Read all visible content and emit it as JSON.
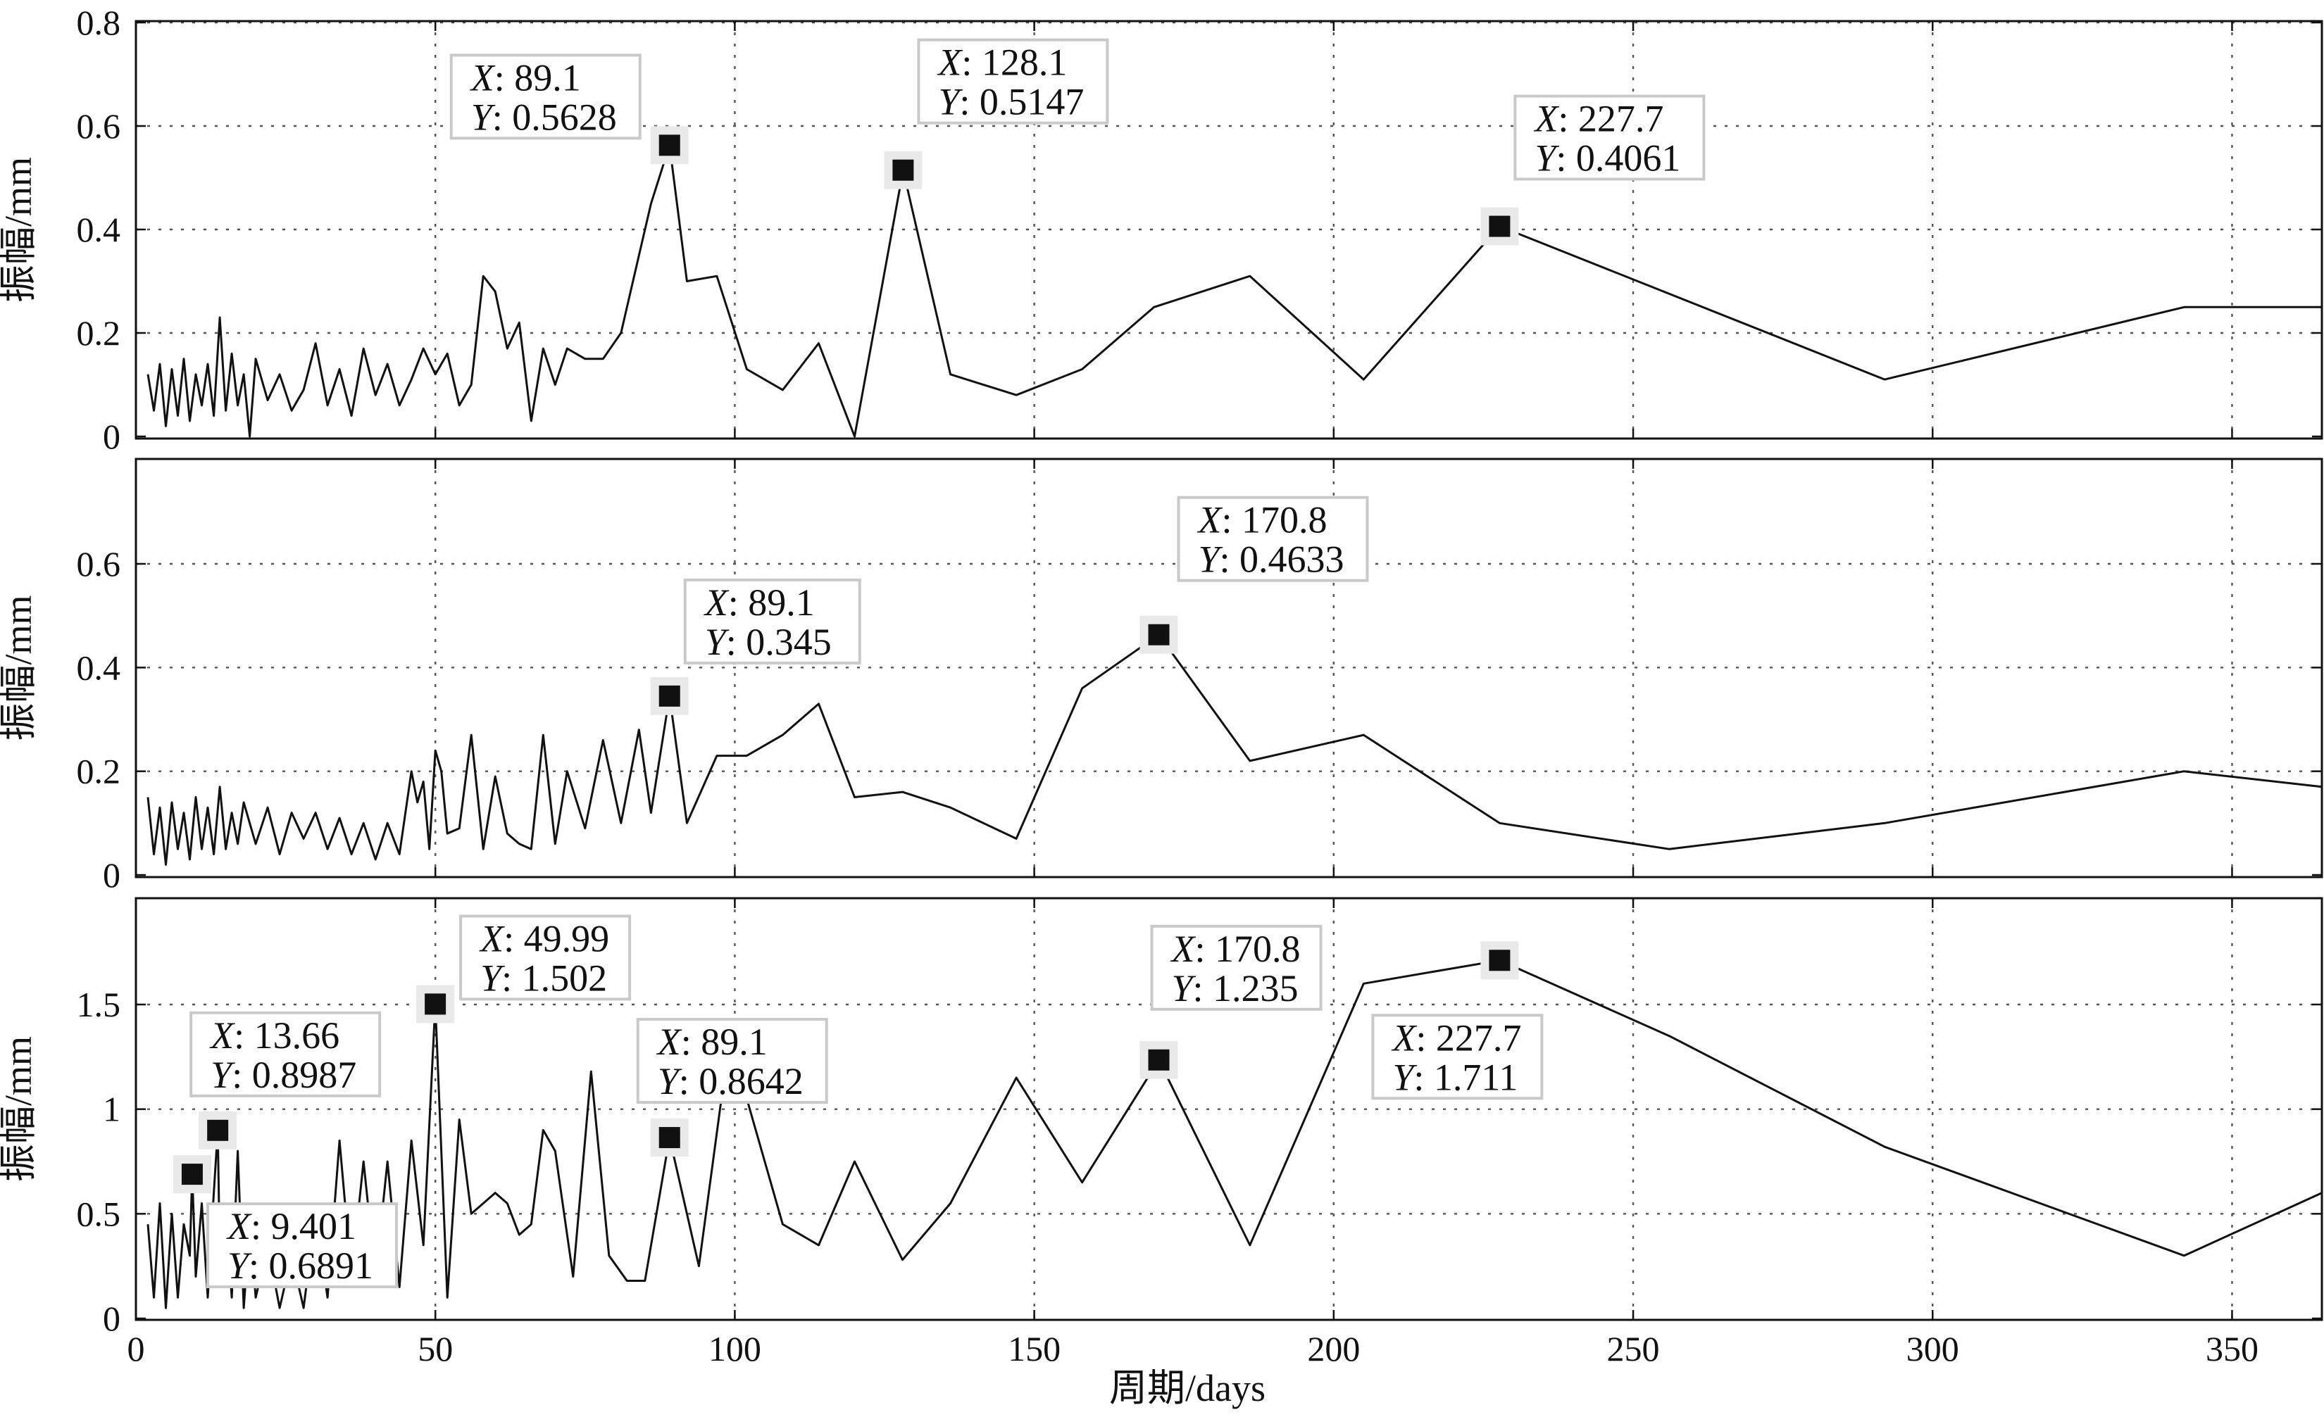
{
  "chart_data": [
    {
      "type": "line",
      "title": "",
      "xlabel": "",
      "ylabel": "振幅/mm",
      "xlim": [
        0,
        365
      ],
      "ylim": [
        0,
        0.8
      ],
      "xticks": [
        0,
        50,
        100,
        150,
        200,
        250,
        300,
        350
      ],
      "xtick_labels": [
        "",
        "",
        "",
        "",
        "",
        "",
        "",
        ""
      ],
      "yticks": [
        0,
        0.2,
        0.4,
        0.6,
        0.8
      ],
      "ytick_labels": [
        "0",
        "0.2",
        "0.4",
        "0.6",
        "0.8"
      ],
      "grid": true,
      "x": [
        2,
        3,
        4,
        5,
        6,
        7,
        8,
        9,
        10,
        11,
        12,
        13,
        14,
        15,
        16,
        17,
        18,
        19,
        20,
        22,
        24,
        26,
        28,
        30,
        32,
        34,
        36,
        38,
        40,
        42,
        44,
        46,
        48,
        50,
        52,
        54,
        56,
        58,
        60,
        62,
        64,
        66,
        68,
        70,
        72,
        75,
        78,
        81,
        84,
        86,
        89.1,
        92,
        97,
        102,
        108,
        114,
        120,
        128.1,
        136,
        147,
        158,
        170,
        186,
        205,
        227.7,
        292,
        342,
        365
      ],
      "y": [
        0.12,
        0.05,
        0.14,
        0.02,
        0.13,
        0.04,
        0.15,
        0.03,
        0.12,
        0.06,
        0.14,
        0.04,
        0.23,
        0.05,
        0.16,
        0.06,
        0.12,
        0.0,
        0.15,
        0.07,
        0.12,
        0.05,
        0.09,
        0.18,
        0.06,
        0.13,
        0.04,
        0.17,
        0.08,
        0.14,
        0.06,
        0.11,
        0.17,
        0.12,
        0.16,
        0.06,
        0.1,
        0.31,
        0.28,
        0.17,
        0.22,
        0.03,
        0.17,
        0.1,
        0.17,
        0.15,
        0.15,
        0.2,
        0.35,
        0.45,
        0.5628,
        0.3,
        0.31,
        0.13,
        0.09,
        0.18,
        0.0,
        0.5147,
        0.12,
        0.08,
        0.13,
        0.25,
        0.31,
        0.11,
        0.4061,
        0.11,
        0.25,
        0.25
      ],
      "datatips": [
        {
          "x": 89.1,
          "y": 0.5628,
          "x_label": "X",
          "x_text": ": 89.1",
          "y_label": "Y",
          "y_text": ": 0.5628"
        },
        {
          "x": 128.1,
          "y": 0.5147,
          "x_label": "X",
          "x_text": ": 128.1",
          "y_label": "Y",
          "y_text": ": 0.5147"
        },
        {
          "x": 227.7,
          "y": 0.4061,
          "x_label": "X",
          "x_text": ": 227.7",
          "y_label": "Y",
          "y_text": ": 0.4061"
        }
      ]
    },
    {
      "type": "line",
      "title": "",
      "xlabel": "",
      "ylabel": "振幅/mm",
      "xlim": [
        0,
        365
      ],
      "ylim": [
        0,
        0.8
      ],
      "xticks": [
        0,
        50,
        100,
        150,
        200,
        250,
        300,
        350
      ],
      "xtick_labels": [
        "",
        "",
        "",
        "",
        "",
        "",
        "",
        ""
      ],
      "yticks": [
        0,
        0.2,
        0.4,
        0.6
      ],
      "ytick_labels": [
        "0",
        "0.2",
        "0.4",
        "0.6"
      ],
      "grid": true,
      "x": [
        2,
        3,
        4,
        5,
        6,
        7,
        8,
        9,
        10,
        11,
        12,
        13,
        14,
        15,
        16,
        17,
        18,
        20,
        22,
        24,
        26,
        28,
        30,
        32,
        34,
        36,
        38,
        40,
        42,
        44,
        46,
        47,
        48,
        49,
        50,
        51,
        52,
        54,
        56,
        58,
        60,
        62,
        64,
        66,
        68,
        70,
        72,
        75,
        78,
        81,
        84,
        86,
        89.1,
        92,
        97,
        102,
        108,
        114,
        120,
        128,
        136,
        147,
        158,
        170.8,
        186,
        205,
        227.7,
        256,
        292,
        342,
        365
      ],
      "y": [
        0.15,
        0.04,
        0.13,
        0.02,
        0.14,
        0.05,
        0.12,
        0.03,
        0.15,
        0.05,
        0.13,
        0.04,
        0.17,
        0.05,
        0.12,
        0.06,
        0.14,
        0.06,
        0.13,
        0.04,
        0.12,
        0.07,
        0.12,
        0.05,
        0.11,
        0.04,
        0.1,
        0.03,
        0.1,
        0.04,
        0.2,
        0.14,
        0.18,
        0.05,
        0.24,
        0.2,
        0.08,
        0.09,
        0.27,
        0.05,
        0.19,
        0.08,
        0.06,
        0.05,
        0.27,
        0.06,
        0.2,
        0.09,
        0.26,
        0.1,
        0.28,
        0.12,
        0.345,
        0.1,
        0.23,
        0.23,
        0.27,
        0.33,
        0.15,
        0.16,
        0.13,
        0.07,
        0.36,
        0.4633,
        0.22,
        0.27,
        0.1,
        0.05,
        0.1,
        0.2,
        0.17
      ],
      "datatips": [
        {
          "x": 89.1,
          "y": 0.345,
          "x_label": "X",
          "x_text": ": 89.1",
          "y_label": "Y",
          "y_text": ": 0.345"
        },
        {
          "x": 170.8,
          "y": 0.4633,
          "x_label": "X",
          "x_text": ": 170.8",
          "y_label": "Y",
          "y_text": ": 0.4633"
        }
      ]
    },
    {
      "type": "line",
      "title": "",
      "xlabel": "周期/days",
      "ylabel": "振幅/mm",
      "xlim": [
        0,
        365
      ],
      "ylim": [
        0,
        2
      ],
      "xticks": [
        0,
        50,
        100,
        150,
        200,
        250,
        300,
        350
      ],
      "xtick_labels": [
        "0",
        "50",
        "100",
        "150",
        "200",
        "250",
        "300",
        "350"
      ],
      "yticks": [
        0,
        0.5,
        1,
        1.5
      ],
      "ytick_labels": [
        "0",
        "0.5",
        "1",
        "1.5"
      ],
      "grid": true,
      "x": [
        2,
        3,
        4,
        5,
        6,
        7,
        8,
        9,
        9.401,
        10,
        11,
        12,
        13,
        13.66,
        14,
        15,
        16,
        17,
        18,
        19,
        20,
        22,
        24,
        26,
        28,
        30,
        32,
        34,
        36,
        38,
        40,
        42,
        44,
        46,
        48,
        49.99,
        52,
        54,
        56,
        58,
        60,
        62,
        64,
        66,
        68,
        70,
        73,
        76,
        79,
        82,
        85,
        89.1,
        94,
        98,
        102,
        108,
        114,
        120,
        128,
        136,
        147,
        158,
        170.8,
        186,
        205,
        227.7,
        256,
        292,
        342,
        365
      ],
      "y": [
        0.45,
        0.1,
        0.55,
        0.05,
        0.5,
        0.1,
        0.45,
        0.3,
        0.6891,
        0.2,
        0.55,
        0.1,
        0.6,
        0.8987,
        0.3,
        0.5,
        0.1,
        0.8,
        0.05,
        0.45,
        0.1,
        0.35,
        0.05,
        0.3,
        0.05,
        0.5,
        0.1,
        0.85,
        0.2,
        0.75,
        0.2,
        0.75,
        0.15,
        0.85,
        0.35,
        1.502,
        0.1,
        0.95,
        0.5,
        0.55,
        0.6,
        0.55,
        0.4,
        0.45,
        0.9,
        0.8,
        0.2,
        1.18,
        0.3,
        0.18,
        0.18,
        0.8642,
        0.25,
        1.1,
        1.05,
        0.45,
        0.35,
        0.75,
        0.28,
        0.55,
        1.15,
        0.65,
        1.235,
        0.35,
        1.6,
        1.711,
        1.35,
        0.82,
        0.3,
        0.6
      ],
      "datatips": [
        {
          "x": 9.401,
          "y": 0.6891,
          "x_label": "X",
          "x_text": ": 9.401",
          "y_label": "Y",
          "y_text": ": 0.6891"
        },
        {
          "x": 13.66,
          "y": 0.8987,
          "x_label": "X",
          "x_text": ": 13.66",
          "y_label": "Y",
          "y_text": ": 0.8987"
        },
        {
          "x": 49.99,
          "y": 1.502,
          "x_label": "X",
          "x_text": ": 49.99",
          "y_label": "Y",
          "y_text": ": 1.502"
        },
        {
          "x": 89.1,
          "y": 0.8642,
          "x_label": "X",
          "x_text": ": 89.1",
          "y_label": "Y",
          "y_text": ": 0.8642"
        },
        {
          "x": 170.8,
          "y": 1.235,
          "x_label": "X",
          "x_text": ": 170.8",
          "y_label": "Y",
          "y_text": ": 1.235"
        },
        {
          "x": 227.7,
          "y": 1.711,
          "x_label": "X",
          "x_text": ": 227.7",
          "y_label": "Y",
          "y_text": ": 1.711"
        }
      ]
    }
  ]
}
